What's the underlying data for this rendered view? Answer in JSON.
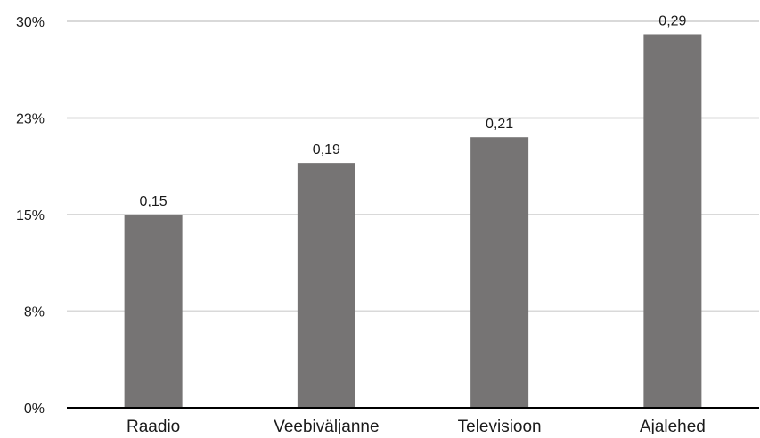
{
  "chart_data": {
    "type": "bar",
    "categories": [
      "Raadio",
      "Veebiväljanne",
      "Televisioon",
      "Ajalehed"
    ],
    "values": [
      0.15,
      0.19,
      0.21,
      0.29
    ],
    "data_labels": [
      "0,15",
      "0,19",
      "0,21",
      "0,29"
    ],
    "y_ticks": [
      {
        "value": 0,
        "label": "0%"
      },
      {
        "value": 0.075,
        "label": "8%"
      },
      {
        "value": 0.15,
        "label": "15%"
      },
      {
        "value": 0.225,
        "label": "23%"
      },
      {
        "value": 0.3,
        "label": "30%"
      }
    ],
    "ylim": [
      0,
      0.3
    ],
    "grid": true,
    "legend": "none",
    "colors": {
      "bar": "#767474",
      "grid": "#d9d9d9",
      "axis": "#000000"
    }
  }
}
